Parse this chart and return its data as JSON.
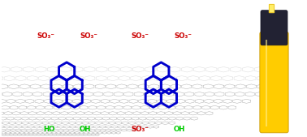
{
  "bg_color": "#ffffff",
  "graphene_line_color": "#b0b0b0",
  "molecule_color": "#0000cc",
  "so3_color": "#cc0000",
  "oh_color": "#00cc00",
  "marker_body_color": "#ffcc00",
  "marker_cap_color": "#222233",
  "mol1_so3_top": [
    "SO₃⁻",
    "SO₃⁻"
  ],
  "mol1_oh_bot": [
    "HO",
    "OH"
  ],
  "mol2_so3_top": [
    "SO₃⁻",
    "SO₃⁻"
  ],
  "mol2_bot": [
    "SO₃⁻",
    "OH"
  ],
  "figsize": [
    3.78,
    1.69
  ],
  "dpi": 100
}
